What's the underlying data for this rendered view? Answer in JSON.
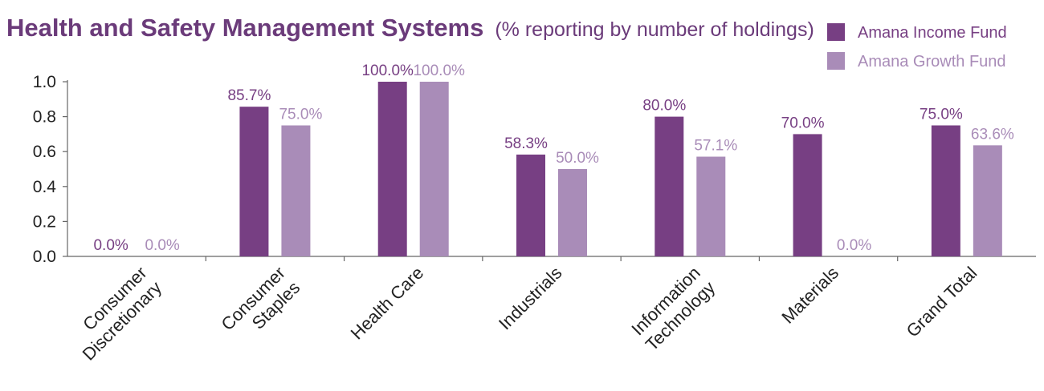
{
  "chart_data": {
    "type": "bar",
    "title": "Health and Safety Management Systems",
    "subtitle": "(% reporting by number of holdings)",
    "categories": [
      [
        "Consumer",
        "Discretionary"
      ],
      [
        "Consumer",
        "Staples"
      ],
      [
        "Health Care"
      ],
      [
        "Industrials"
      ],
      [
        "Information",
        "Technology"
      ],
      [
        "Materials"
      ],
      [
        "Grand Total"
      ]
    ],
    "series": [
      {
        "name": "Amana Income Fund",
        "color": "#773f83",
        "values": [
          0.0,
          0.857,
          1.0,
          0.583,
          0.8,
          0.7,
          0.75
        ],
        "labels": [
          "0.0%",
          "85.7%",
          "100.0%",
          "58.3%",
          "80.0%",
          "70.0%",
          "75.0%"
        ]
      },
      {
        "name": "Amana Growth Fund",
        "color": "#a98cb8",
        "values": [
          0.0,
          0.75,
          1.0,
          0.5,
          0.571,
          0.0,
          0.636
        ],
        "labels": [
          "0.0%",
          "75.0%",
          "100.0%",
          "50.0%",
          "57.1%",
          "0.0%",
          "63.6%"
        ]
      }
    ],
    "yticks": [
      "0.0",
      "0.2",
      "0.4",
      "0.6",
      "0.8",
      "1.0"
    ],
    "ylim": [
      0,
      1.0
    ],
    "grid": false,
    "legend_position": "top-right",
    "xlabel": "",
    "ylabel": ""
  }
}
